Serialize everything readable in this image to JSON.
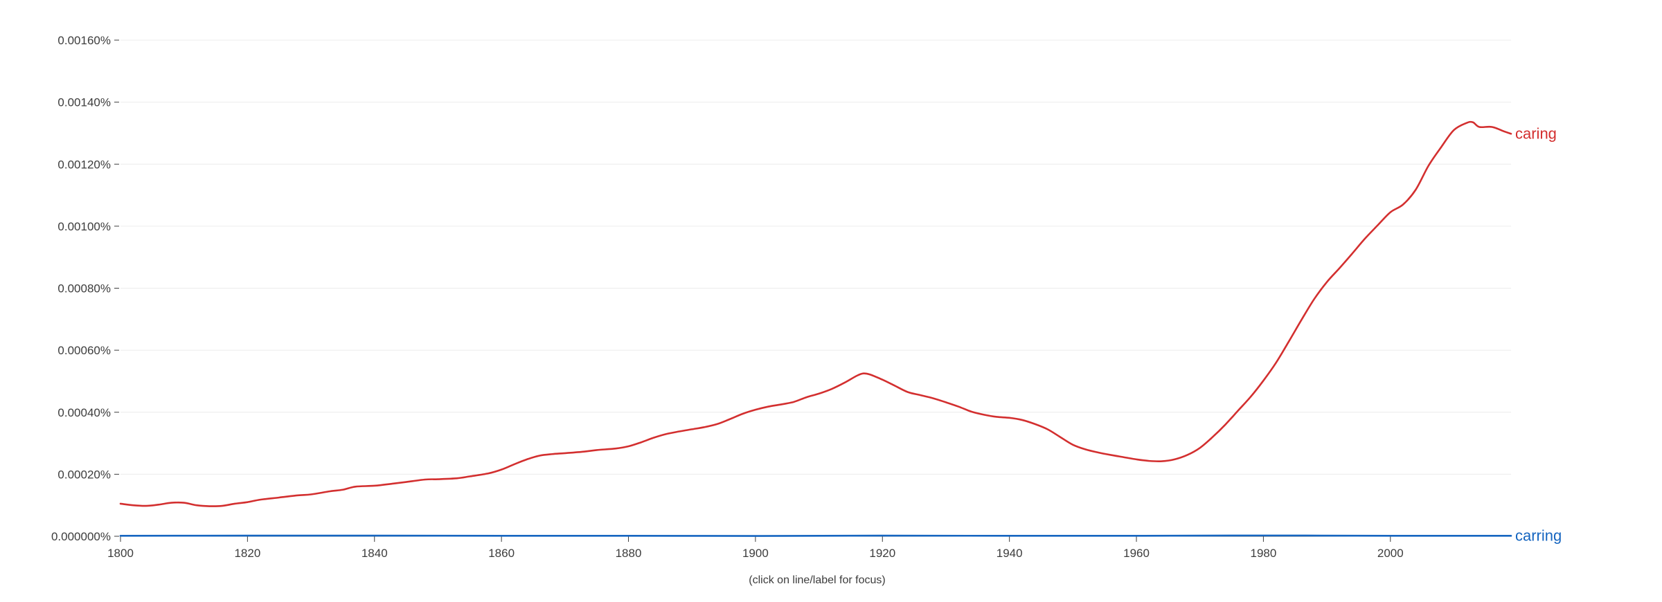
{
  "chart_data": {
    "type": "line",
    "title": "",
    "xlabel": "",
    "ylabel": "",
    "xlim": [
      1800,
      2019
    ],
    "ylim": [
      0,
      0.0016
    ],
    "x_ticks": [
      1800,
      1820,
      1840,
      1860,
      1880,
      1900,
      1920,
      1940,
      1960,
      1980,
      2000
    ],
    "x_tick_labels": [
      "1800",
      "1820",
      "1840",
      "1860",
      "1880",
      "1900",
      "1920",
      "1940",
      "1960",
      "1980",
      "2000"
    ],
    "y_ticks": [
      0,
      0.0002,
      0.0004,
      0.0006,
      0.0008,
      0.001,
      0.0012,
      0.0014,
      0.0016
    ],
    "y_tick_labels": [
      "0.000000%",
      "0.00020%",
      "0.00040%",
      "0.00060%",
      "0.00080%",
      "0.00100%",
      "0.00120%",
      "0.00140%",
      "0.00160%"
    ],
    "grid": true,
    "footnote": "(click on line/label for focus)",
    "series": [
      {
        "name": "caring",
        "color": "#d32f2f",
        "x": [
          1800,
          1802,
          1804,
          1806,
          1808,
          1810,
          1812,
          1814,
          1816,
          1818,
          1820,
          1822,
          1825,
          1828,
          1830,
          1833,
          1835,
          1837,
          1840,
          1843,
          1845,
          1848,
          1850,
          1853,
          1855,
          1858,
          1860,
          1862,
          1864,
          1866,
          1868,
          1870,
          1873,
          1875,
          1878,
          1880,
          1882,
          1884,
          1886,
          1888,
          1890,
          1892,
          1894,
          1896,
          1898,
          1900,
          1902,
          1904,
          1906,
          1908,
          1910,
          1912,
          1914,
          1916,
          1917,
          1918,
          1920,
          1922,
          1924,
          1926,
          1928,
          1930,
          1932,
          1934,
          1936,
          1938,
          1940,
          1942,
          1944,
          1946,
          1948,
          1950,
          1952,
          1954,
          1956,
          1958,
          1960,
          1962,
          1964,
          1966,
          1968,
          1970,
          1972,
          1974,
          1976,
          1978,
          1980,
          1982,
          1984,
          1986,
          1988,
          1990,
          1992,
          1994,
          1996,
          1998,
          2000,
          2002,
          2004,
          2006,
          2008,
          2010,
          2012,
          2013,
          2014,
          2016,
          2018,
          2019
        ],
        "values": [
          0.000105,
          0.0001,
          9.8e-05,
          0.000102,
          0.000108,
          0.000108,
          0.0001,
          9.7e-05,
          9.8e-05,
          0.000105,
          0.00011,
          0.000118,
          0.000125,
          0.000132,
          0.000135,
          0.000145,
          0.00015,
          0.00016,
          0.000163,
          0.00017,
          0.000175,
          0.000183,
          0.000184,
          0.000187,
          0.000193,
          0.000203,
          0.000215,
          0.000232,
          0.000248,
          0.00026,
          0.000265,
          0.000268,
          0.000273,
          0.000278,
          0.000283,
          0.00029,
          0.000303,
          0.000318,
          0.00033,
          0.000338,
          0.000345,
          0.000352,
          0.000362,
          0.000378,
          0.000395,
          0.000408,
          0.000418,
          0.000425,
          0.000433,
          0.000448,
          0.00046,
          0.000475,
          0.000495,
          0.000518,
          0.000525,
          0.000522,
          0.000505,
          0.000485,
          0.000465,
          0.000455,
          0.000445,
          0.000432,
          0.000418,
          0.000402,
          0.000392,
          0.000385,
          0.000382,
          0.000375,
          0.000362,
          0.000345,
          0.00032,
          0.000295,
          0.00028,
          0.00027,
          0.000262,
          0.000255,
          0.000248,
          0.000243,
          0.000242,
          0.000248,
          0.000262,
          0.000285,
          0.00032,
          0.00036,
          0.000405,
          0.00045,
          0.000502,
          0.00056,
          0.000628,
          0.000698,
          0.000765,
          0.00082,
          0.000865,
          0.000912,
          0.00096,
          0.001003,
          0.001045,
          0.00107,
          0.001118,
          0.001195,
          0.001255,
          0.00131,
          0.001333,
          0.001335,
          0.00132,
          0.00132,
          0.001305,
          0.001298
        ]
      },
      {
        "name": "carring",
        "color": "#1565c0",
        "x": [
          1800,
          1820,
          1840,
          1860,
          1880,
          1900,
          1920,
          1940,
          1960,
          1980,
          2000,
          2019
        ],
        "values": [
          1.5e-06,
          2e-06,
          2e-06,
          1.5e-06,
          1.5e-06,
          1e-06,
          2e-06,
          1.5e-06,
          1.5e-06,
          2.5e-06,
          1.5e-06,
          1.5e-06
        ]
      }
    ]
  }
}
